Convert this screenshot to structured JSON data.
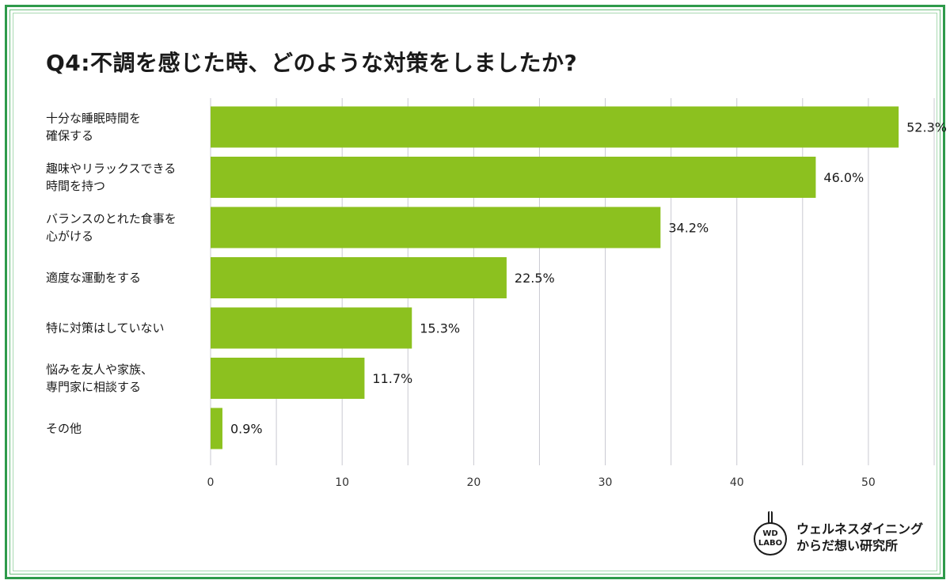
{
  "title": "Q4:不調を感じた時、どのような対策をしましたか?",
  "logo": {
    "badge_line1": "WD",
    "badge_line2": "LABO",
    "name_line1": "ウェルネスダイニング",
    "name_line2": "からだ想い研究所"
  },
  "colors": {
    "bar": "#8cc11f",
    "grid": "#c9c9d1",
    "frame": "#2e9a4a"
  },
  "chart_data": {
    "type": "bar",
    "orientation": "horizontal",
    "title": "Q4:不調を感じた時、どのような対策をしましたか?",
    "categories": [
      [
        "十分な睡眠時間を",
        "確保する"
      ],
      [
        "趣味やリラックスできる",
        "時間を持つ"
      ],
      [
        "バランスのとれた食事を",
        "心がける"
      ],
      [
        "適度な運動をする"
      ],
      [
        "特に対策はしていない"
      ],
      [
        "悩みを友人や家族、",
        "専門家に相談する"
      ],
      [
        "その他"
      ]
    ],
    "values": [
      52.3,
      46.0,
      34.2,
      22.5,
      15.3,
      11.7,
      0.9
    ],
    "value_labels": [
      "52.3%",
      "46.0%",
      "34.2%",
      "22.5%",
      "15.3%",
      "11.7%",
      "0.9%"
    ],
    "xlim": [
      0,
      55
    ],
    "ticks": [
      0,
      10,
      20,
      30,
      40,
      50
    ],
    "gridline_step": 5,
    "xlabel": "",
    "ylabel": ""
  }
}
